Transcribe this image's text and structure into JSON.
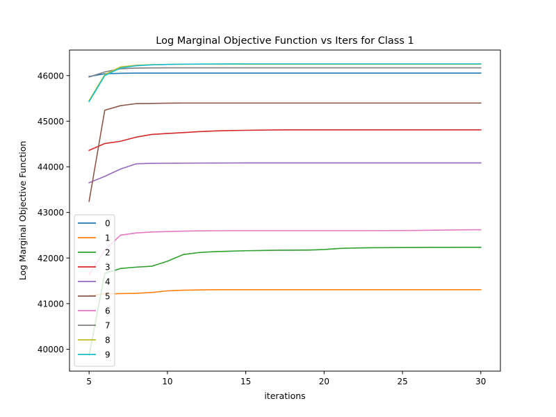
{
  "chart_data": {
    "type": "line",
    "title": "Log Marginal Objective Function vs Iters for Class 1",
    "xlabel": "iterations",
    "ylabel": "Log Marginal Objective Function",
    "xlim": [
      3.75,
      31.25
    ],
    "ylim": [
      39520,
      46560
    ],
    "xticks": [
      5,
      10,
      15,
      20,
      25,
      30
    ],
    "yticks": [
      40000,
      41000,
      42000,
      43000,
      44000,
      45000,
      46000
    ],
    "grid": false,
    "legend_position": "lower-left",
    "x": [
      5,
      6,
      7,
      8,
      9,
      10,
      11,
      12,
      13,
      14,
      15,
      16,
      17,
      18,
      19,
      20,
      21,
      22,
      23,
      24,
      25,
      26,
      27,
      28,
      29,
      30
    ],
    "series": [
      {
        "name": "0",
        "color": "#1f77b4",
        "values": [
          45980,
          46040,
          46050,
          46055,
          46055,
          46055,
          46055,
          46055,
          46055,
          46055,
          46055,
          46055,
          46055,
          46055,
          46055,
          46055,
          46055,
          46055,
          46055,
          46055,
          46055,
          46055,
          46055,
          46055,
          46055,
          46055
        ]
      },
      {
        "name": "1",
        "color": "#ff7f0e",
        "values": [
          41180,
          41210,
          41220,
          41225,
          41245,
          41280,
          41295,
          41300,
          41305,
          41305,
          41305,
          41305,
          41305,
          41305,
          41305,
          41305,
          41305,
          41305,
          41305,
          41305,
          41305,
          41305,
          41305,
          41305,
          41305,
          41305
        ]
      },
      {
        "name": "2",
        "color": "#2ca02c",
        "values": [
          39860,
          41660,
          41770,
          41800,
          41820,
          41930,
          42075,
          42120,
          42140,
          42150,
          42160,
          42165,
          42170,
          42172,
          42175,
          42185,
          42210,
          42220,
          42225,
          42228,
          42230,
          42232,
          42233,
          42234,
          42235,
          42235
        ]
      },
      {
        "name": "3",
        "color": "#d62728",
        "values": [
          44360,
          44510,
          44560,
          44650,
          44710,
          44730,
          44750,
          44770,
          44785,
          44795,
          44800,
          44805,
          44808,
          44810,
          44810,
          44810,
          44810,
          44810,
          44810,
          44810,
          44810,
          44810,
          44810,
          44810,
          44810,
          44810
        ]
      },
      {
        "name": "4",
        "color": "#9467bd",
        "values": [
          43650,
          43790,
          43950,
          44065,
          44075,
          44078,
          44080,
          44082,
          44083,
          44084,
          44085,
          44085,
          44085,
          44085,
          44085,
          44085,
          44085,
          44085,
          44085,
          44085,
          44085,
          44085,
          44085,
          44085,
          44085,
          44085
        ]
      },
      {
        "name": "5",
        "color": "#8c564b",
        "values": [
          43240,
          45240,
          45340,
          45385,
          45390,
          45395,
          45398,
          45398,
          45398,
          45398,
          45398,
          45398,
          45398,
          45398,
          45398,
          45398,
          45398,
          45398,
          45398,
          45398,
          45398,
          45398,
          45398,
          45398,
          45398,
          45398
        ]
      },
      {
        "name": "6",
        "color": "#e377c2",
        "values": [
          41640,
          42170,
          42500,
          42550,
          42570,
          42580,
          42590,
          42595,
          42598,
          42600,
          42600,
          42600,
          42600,
          42600,
          42600,
          42600,
          42600,
          42600,
          42600,
          42602,
          42603,
          42605,
          42610,
          42615,
          42618,
          42620
        ]
      },
      {
        "name": "7",
        "color": "#7f7f7f",
        "values": [
          45970,
          46080,
          46150,
          46165,
          46168,
          46170,
          46170,
          46170,
          46170,
          46170,
          46170,
          46170,
          46170,
          46170,
          46170,
          46170,
          46170,
          46170,
          46170,
          46170,
          46170,
          46170,
          46170,
          46170,
          46170,
          46170
        ]
      },
      {
        "name": "8",
        "color": "#bcbd22",
        "values": [
          45450,
          46020,
          46190,
          46225,
          46240,
          46245,
          46248,
          46250,
          46250,
          46250,
          46250,
          46250,
          46250,
          46250,
          46250,
          46250,
          46250,
          46250,
          46250,
          46250,
          46250,
          46250,
          46250,
          46250,
          46250,
          46250
        ]
      },
      {
        "name": "9",
        "color": "#17becf",
        "values": [
          45430,
          46000,
          46165,
          46215,
          46235,
          46245,
          46250,
          46253,
          46255,
          46256,
          46257,
          46257,
          46257,
          46257,
          46257,
          46257,
          46257,
          46257,
          46257,
          46257,
          46257,
          46257,
          46257,
          46257,
          46257,
          46257
        ]
      }
    ]
  }
}
